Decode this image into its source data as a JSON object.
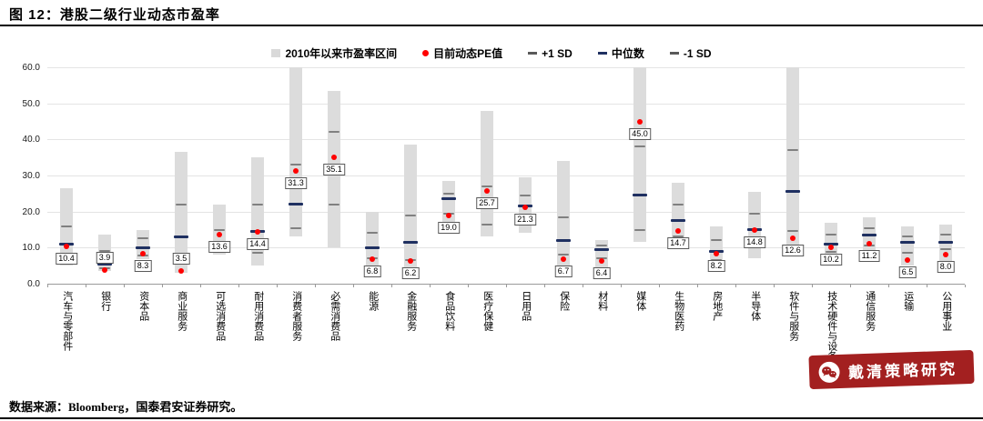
{
  "header": {
    "title": "图 12：港股二级行业动态市盈率"
  },
  "legend": {
    "items": [
      {
        "marker": "bar",
        "color": "#D9D9D9",
        "label": "2010年以来市盈率区间"
      },
      {
        "marker": "dot",
        "color": "#FF0000",
        "label": "目前动态PE值"
      },
      {
        "marker": "dash",
        "color": "#595959",
        "label": "+1 SD"
      },
      {
        "marker": "dash",
        "color": "#1F3061",
        "label": "中位数"
      },
      {
        "marker": "dash",
        "color": "#595959",
        "label": "-1 SD"
      }
    ]
  },
  "chart_data": {
    "type": "range-bar-with-markers",
    "title": "港股二级行业动态市盈率",
    "xlabel": "",
    "ylabel": "",
    "ylim": [
      0,
      60
    ],
    "yticks": [
      "0.0",
      "10.0",
      "20.0",
      "30.0",
      "40.0",
      "50.0",
      "60.0"
    ],
    "grid": true,
    "legend_position": "top",
    "series_labels": {
      "range": "2010年以来市盈率区间",
      "current": "目前动态PE值",
      "sd_plus": "+1 SD",
      "median": "中位数",
      "sd_minus": "-1 SD"
    },
    "industries": [
      {
        "name": "汽车与零部件",
        "range": [
          5.0,
          26.5
        ],
        "current": 10.4,
        "median": 11.0,
        "sd_plus": 16.0,
        "sd_minus": 6.5
      },
      {
        "name": "银行",
        "range": [
          3.5,
          13.5
        ],
        "current": 3.9,
        "median": 5.5,
        "sd_plus": 9.0,
        "sd_minus": 4.2
      },
      {
        "name": "资本品",
        "range": [
          6.8,
          15.0
        ],
        "current": 8.3,
        "median": 10.0,
        "sd_plus": 12.5,
        "sd_minus": 7.8
      },
      {
        "name": "商业服务",
        "range": [
          3.0,
          36.5
        ],
        "current": 3.5,
        "median": 13.0,
        "sd_plus": 22.0,
        "sd_minus": 5.5
      },
      {
        "name": "可选消费品",
        "range": [
          8.0,
          22.0
        ],
        "current": 13.6,
        "median": 11.0,
        "sd_plus": 15.0,
        "sd_minus": 9.5
      },
      {
        "name": "耐用消费品",
        "range": [
          5.0,
          35.0
        ],
        "current": 14.4,
        "median": 14.5,
        "sd_plus": 22.0,
        "sd_minus": 8.5
      },
      {
        "name": "消费者服务",
        "range": [
          13.0,
          60.0
        ],
        "current": 31.3,
        "median": 22.0,
        "sd_plus": 33.0,
        "sd_minus": 15.5
      },
      {
        "name": "必需消费品",
        "range": [
          10.0,
          53.5
        ],
        "current": 35.1,
        "median": 33.0,
        "sd_plus": 42.0,
        "sd_minus": 22.0
      },
      {
        "name": "能源",
        "range": [
          5.0,
          20.0
        ],
        "current": 6.8,
        "median": 10.0,
        "sd_plus": 14.0,
        "sd_minus": 7.0
      },
      {
        "name": "金融服务",
        "range": [
          4.5,
          38.5
        ],
        "current": 6.2,
        "median": 11.5,
        "sd_plus": 19.0,
        "sd_minus": 6.5
      },
      {
        "name": "食品饮料",
        "range": [
          14.0,
          28.5
        ],
        "current": 19.0,
        "median": 23.5,
        "sd_plus": 25.0,
        "sd_minus": 19.5
      },
      {
        "name": "医疗保健",
        "range": [
          13.0,
          48.0
        ],
        "current": 25.7,
        "median": 22.0,
        "sd_plus": 27.0,
        "sd_minus": 16.5
      },
      {
        "name": "日用品",
        "range": [
          14.0,
          29.5
        ],
        "current": 21.3,
        "median": 21.5,
        "sd_plus": 24.5,
        "sd_minus": 18.0
      },
      {
        "name": "保险",
        "range": [
          5.0,
          34.0
        ],
        "current": 6.7,
        "median": 12.0,
        "sd_plus": 18.5,
        "sd_minus": 8.0
      },
      {
        "name": "材料",
        "range": [
          4.5,
          12.0
        ],
        "current": 6.4,
        "median": 9.5,
        "sd_plus": 10.5,
        "sd_minus": 7.0
      },
      {
        "name": "媒体",
        "range": [
          11.5,
          60.0
        ],
        "current": 45.0,
        "median": 24.5,
        "sd_plus": 38.0,
        "sd_minus": 15.0
      },
      {
        "name": "生物医药",
        "range": [
          10.0,
          28.0
        ],
        "current": 14.7,
        "median": 17.5,
        "sd_plus": 22.0,
        "sd_minus": 13.0
      },
      {
        "name": "房地产",
        "range": [
          4.0,
          16.0
        ],
        "current": 8.2,
        "median": 9.0,
        "sd_plus": 12.0,
        "sd_minus": 6.5
      },
      {
        "name": "半导体",
        "range": [
          7.0,
          25.5
        ],
        "current": 14.8,
        "median": 15.0,
        "sd_plus": 19.5,
        "sd_minus": 11.0
      },
      {
        "name": "软件与服务",
        "range": [
          8.0,
          60.0
        ],
        "current": 12.6,
        "median": 25.5,
        "sd_plus": 37.0,
        "sd_minus": 14.5
      },
      {
        "name": "技术硬件与设备",
        "range": [
          6.5,
          17.0
        ],
        "current": 10.2,
        "median": 11.0,
        "sd_plus": 13.5,
        "sd_minus": 8.8
      },
      {
        "name": "通信服务",
        "range": [
          8.0,
          18.5
        ],
        "current": 11.2,
        "median": 13.5,
        "sd_plus": 15.5,
        "sd_minus": 10.5
      },
      {
        "name": "运输",
        "range": [
          5.0,
          16.0
        ],
        "current": 6.5,
        "median": 11.5,
        "sd_plus": 13.0,
        "sd_minus": 8.5
      },
      {
        "name": "公用事业",
        "range": [
          6.0,
          16.5
        ],
        "current": 8.0,
        "median": 11.5,
        "sd_plus": 13.5,
        "sd_minus": 9.5
      }
    ]
  },
  "footer": {
    "source": "数据来源：Bloomberg，国泰君安证券研究。",
    "watermark": "戴清策略研究"
  },
  "colors": {
    "range_bar": "#DCDCDC",
    "current_dot": "#FF0000",
    "median": "#1F3061",
    "sd": "#808080",
    "watermark_bg": "#A32020",
    "rule": "#000000"
  }
}
